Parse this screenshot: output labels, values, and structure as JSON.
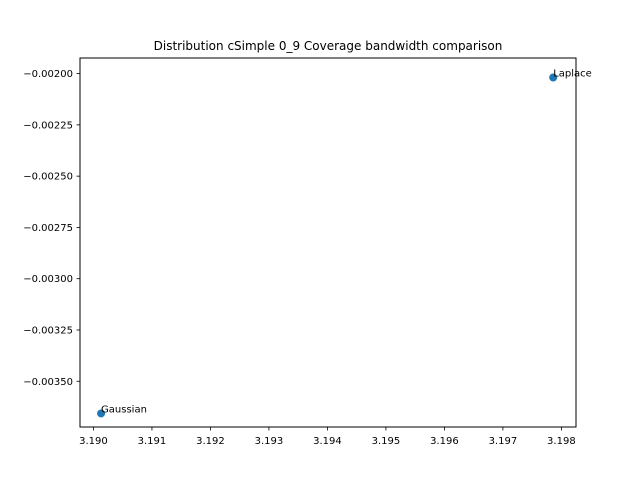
{
  "chart_data": {
    "type": "scatter",
    "title": "Distribution cSimple 0_9 Coverage bandwidth comparison",
    "xlabel": "",
    "ylabel": "",
    "xlim": [
      3.18977,
      3.19825
    ],
    "ylim": [
      -0.003723,
      -0.001924
    ],
    "grid": false,
    "x_ticks": [
      3.19,
      3.191,
      3.192,
      3.193,
      3.194,
      3.195,
      3.196,
      3.197,
      3.198
    ],
    "x_tick_labels": [
      "3.190",
      "3.191",
      "3.192",
      "3.193",
      "3.194",
      "3.195",
      "3.196",
      "3.197",
      "3.198"
    ],
    "y_ticks": [
      -0.002,
      -0.00225,
      -0.0025,
      -0.00275,
      -0.003,
      -0.00325,
      -0.0035
    ],
    "y_tick_labels": [
      "−0.00200",
      "−0.00225",
      "−0.00250",
      "−0.00275",
      "−0.00300",
      "−0.00325",
      "−0.00350"
    ],
    "points": [
      {
        "label": "Gaussian",
        "x": 3.19013,
        "y": -0.003657
      },
      {
        "label": "Laplace",
        "x": 3.19786,
        "y": -0.002019
      }
    ],
    "marker_color": "#1f77b4"
  }
}
